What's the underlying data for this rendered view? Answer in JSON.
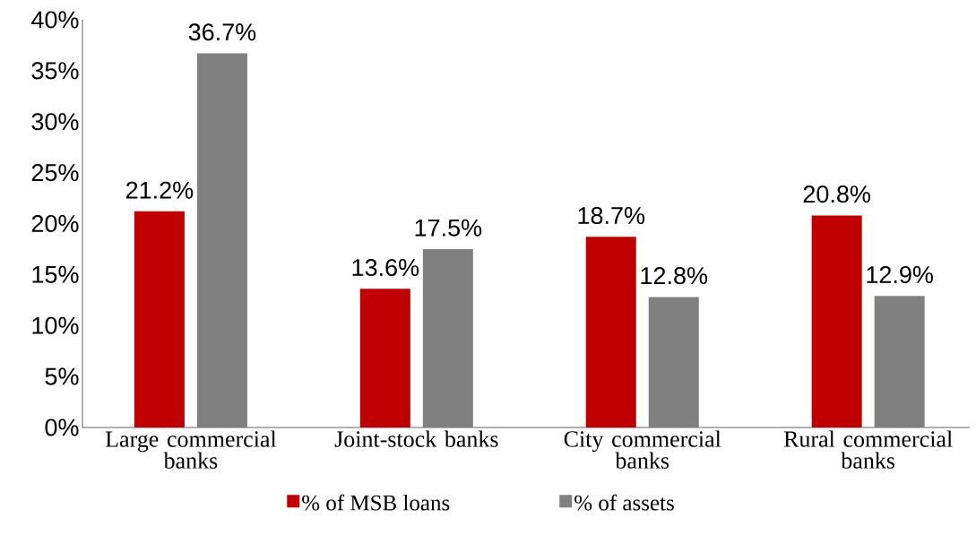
{
  "chart_data": {
    "type": "bar",
    "categories": [
      "Large commercial banks",
      "Joint-stock banks",
      "City commercial banks",
      "Rural commercial banks"
    ],
    "series": [
      {
        "name": "% of MSB loans",
        "color": "#c00000",
        "values": [
          21.2,
          13.6,
          18.7,
          20.8
        ],
        "value_labels": [
          "21.2%",
          "13.6%",
          "18.7%",
          "20.8%"
        ]
      },
      {
        "name": "% of assets",
        "color": "#808080",
        "values": [
          36.7,
          17.5,
          12.8,
          12.9
        ],
        "value_labels": [
          "36.7%",
          "17.5%",
          "12.8%",
          "12.9%"
        ]
      }
    ],
    "ylim": [
      0,
      40
    ],
    "yticks": [
      {
        "value": 0,
        "label": "0%"
      },
      {
        "value": 5,
        "label": "5%"
      },
      {
        "value": 10,
        "label": "10%"
      },
      {
        "value": 15,
        "label": "15%"
      },
      {
        "value": 20,
        "label": "20%"
      },
      {
        "value": 25,
        "label": "25%"
      },
      {
        "value": 30,
        "label": "30%"
      },
      {
        "value": 35,
        "label": "35%"
      },
      {
        "value": 40,
        "label": "40%"
      }
    ],
    "legend": "bottom"
  }
}
